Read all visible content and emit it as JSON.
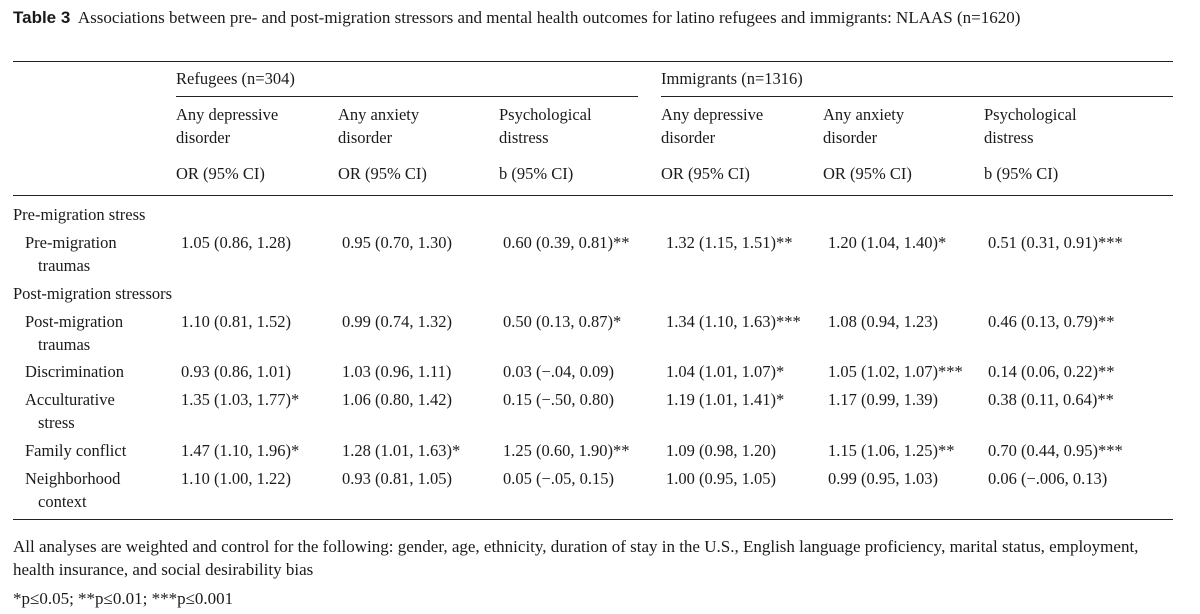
{
  "caption": {
    "label": "Table 3",
    "title": "Associations between pre- and post-migration stressors and mental health outcomes for latino refugees and immigrants: NLAAS (n=1620)"
  },
  "groups": [
    {
      "name": "Refugees (n=304)",
      "columns": [
        {
          "line1": "Any depressive",
          "line2": "disorder",
          "stat": "OR (95% CI)"
        },
        {
          "line1": "Any anxiety",
          "line2": "disorder",
          "stat": "OR (95% CI)"
        },
        {
          "line1": "Psychological",
          "line2": "distress",
          "stat": "b (95% CI)"
        }
      ]
    },
    {
      "name": "Immigrants (n=1316)",
      "columns": [
        {
          "line1": "Any depressive",
          "line2": "disorder",
          "stat": "OR (95% CI)"
        },
        {
          "line1": "Any anxiety",
          "line2": "disorder",
          "stat": "OR (95% CI)"
        },
        {
          "line1": "Psychological",
          "line2": "distress",
          "stat": "b (95% CI)"
        }
      ]
    }
  ],
  "sections": [
    {
      "title": "Pre-migration stress",
      "rows": [
        {
          "label1": "Pre-migration",
          "label2": "traumas",
          "values": [
            "1.05 (0.86, 1.28)",
            "0.95 (0.70, 1.30)",
            "0.60 (0.39, 0.81)**",
            "1.32 (1.15, 1.51)**",
            "1.20 (1.04, 1.40)*",
            "0.51 (0.31, 0.91)***"
          ]
        }
      ]
    },
    {
      "title": "Post-migration stressors",
      "rows": [
        {
          "label1": "Post-migration",
          "label2": "traumas",
          "values": [
            "1.10 (0.81, 1.52)",
            "0.99 (0.74, 1.32)",
            "0.50 (0.13, 0.87)*",
            "1.34 (1.10, 1.63)***",
            "1.08 (0.94, 1.23)",
            "0.46 (0.13, 0.79)**"
          ]
        },
        {
          "label1": "Discrimination",
          "label2": "",
          "values": [
            "0.93 (0.86, 1.01)",
            "1.03 (0.96, 1.11)",
            "0.03 (−.04, 0.09)",
            "1.04 (1.01, 1.07)*",
            "1.05 (1.02, 1.07)***",
            "0.14 (0.06, 0.22)**"
          ]
        },
        {
          "label1": "Acculturative",
          "label2": "stress",
          "values": [
            "1.35 (1.03, 1.77)*",
            "1.06 (0.80, 1.42)",
            "0.15 (−.50, 0.80)",
            "1.19 (1.01, 1.41)*",
            "1.17 (0.99, 1.39)",
            "0.38 (0.11, 0.64)**"
          ]
        },
        {
          "label1": "Family conflict",
          "label2": "",
          "values": [
            "1.47 (1.10, 1.96)*",
            "1.28 (1.01, 1.63)*",
            "1.25 (0.60, 1.90)**",
            "1.09 (0.98, 1.20)",
            "1.15 (1.06, 1.25)**",
            "0.70 (0.44, 0.95)***"
          ]
        },
        {
          "label1": "Neighborhood",
          "label2": "context",
          "values": [
            "1.10 (1.00, 1.22)",
            "0.93 (0.81, 1.05)",
            "0.05 (−.05, 0.15)",
            "1.00 (0.95, 1.05)",
            "0.99 (0.95, 1.03)",
            "0.06 (−.006, 0.13)"
          ]
        }
      ]
    }
  ],
  "notes": {
    "analysis": "All analyses are weighted and control for the following: gender, age, ethnicity, duration of stay in the U.S., English language proficiency, marital status, employment, health insurance, and social desirability bias",
    "significance": "*p≤0.05; **p≤0.01; ***p≤0.001"
  }
}
